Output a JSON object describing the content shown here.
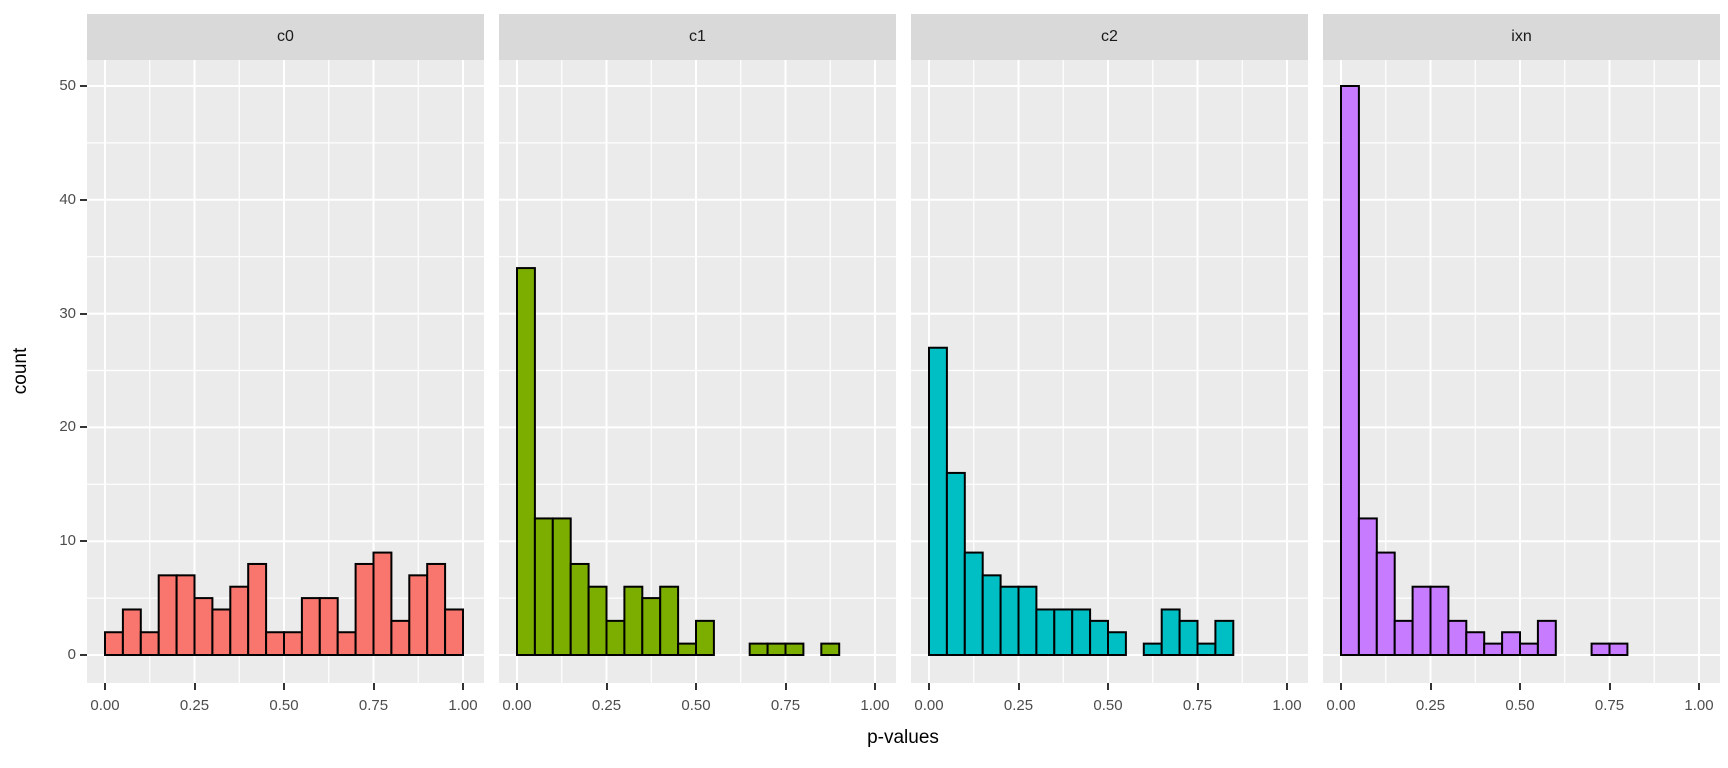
{
  "figure_title": "",
  "axes": {
    "x_title": "p-values",
    "y_title": "count",
    "x_tick_labels": [
      "0.00",
      "0.25",
      "0.50",
      "0.75",
      "1.00"
    ],
    "y_tick_labels": [
      "0",
      "10",
      "20",
      "30",
      "40",
      "50"
    ]
  },
  "chart_data": {
    "type": "bar",
    "subtype": "faceted_histogram",
    "title": "",
    "xlabel": "p-values",
    "ylabel": "count",
    "xlim": [
      -0.05,
      1.05
    ],
    "ylim": [
      0,
      52.5
    ],
    "x_ticks": [
      0,
      0.25,
      0.5,
      0.75,
      1.0
    ],
    "y_ticks": [
      0,
      10,
      20,
      30,
      40,
      50
    ],
    "minor_x_ticks": [
      0.125,
      0.375,
      0.625,
      0.875
    ],
    "minor_y_ticks": [
      5,
      15,
      25,
      35,
      45
    ],
    "grid": "white major and minor gridlines on grey panel",
    "legend_position": "none",
    "bin_width": 0.05,
    "bin_starts": [
      0.0,
      0.05,
      0.1,
      0.15,
      0.2,
      0.25,
      0.3,
      0.35,
      0.4,
      0.45,
      0.5,
      0.55,
      0.6,
      0.65,
      0.7,
      0.75,
      0.8,
      0.85,
      0.9,
      0.95
    ],
    "facets": [
      {
        "label": "c0",
        "fill": "#F8766D",
        "counts": [
          2,
          4,
          2,
          7,
          7,
          5,
          4,
          6,
          8,
          2,
          2,
          5,
          5,
          2,
          8,
          9,
          3,
          7,
          8,
          4
        ]
      },
      {
        "label": "c1",
        "fill": "#7CAE00",
        "counts": [
          34,
          12,
          12,
          8,
          6,
          3,
          6,
          5,
          6,
          1,
          3,
          0,
          0,
          1,
          1,
          1,
          0,
          1,
          0,
          0
        ]
      },
      {
        "label": "c2",
        "fill": "#00BFC4",
        "counts": [
          27,
          16,
          9,
          7,
          6,
          6,
          4,
          4,
          4,
          3,
          2,
          0,
          1,
          4,
          3,
          1,
          3,
          0,
          0,
          0
        ]
      },
      {
        "label": "ixn",
        "fill": "#C77CFF",
        "counts": [
          50,
          12,
          9,
          3,
          6,
          6,
          3,
          2,
          1,
          2,
          1,
          3,
          0,
          0,
          1,
          1,
          0,
          0,
          0,
          0
        ]
      }
    ],
    "style": {
      "panel_bg": "#EBEBEB",
      "strip_bg": "#D9D9D9",
      "strip_text": "#1A1A1A",
      "gridline": "#FFFFFF",
      "bar_stroke": "#000000",
      "axis_text": "#4D4D4D",
      "axis_title_text": "#000000",
      "tick_mark": "#333333",
      "background": "#FFFFFF"
    }
  }
}
